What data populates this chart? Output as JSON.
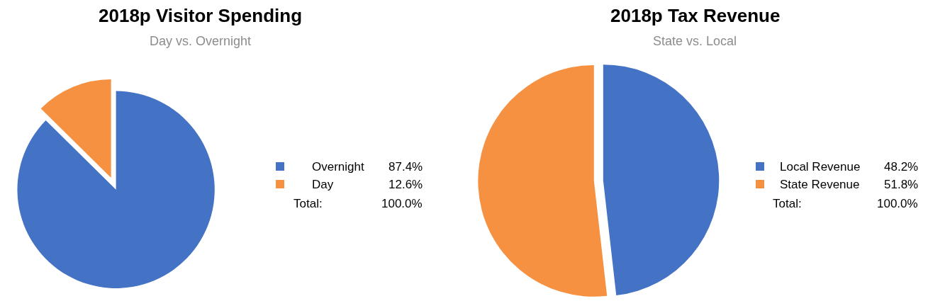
{
  "chart_data": [
    {
      "type": "pie",
      "title": "2018p Visitor Spending",
      "subtitle": "Day vs. Overnight",
      "categories": [
        "Overnight",
        "Day"
      ],
      "values": [
        87.4,
        12.6
      ],
      "colors": [
        "#4472c4",
        "#f79142"
      ],
      "value_labels": [
        "87.4%",
        "12.6%"
      ],
      "legend": "right",
      "annotations": [
        "Total:",
        "100.0%"
      ]
    },
    {
      "type": "pie",
      "title": "2018p Tax Revenue",
      "subtitle": "State vs. Local",
      "categories": [
        "Local Revenue",
        "State Revenue"
      ],
      "values": [
        48.2,
        51.8
      ],
      "colors": [
        "#4472c4",
        "#f79142"
      ],
      "value_labels": [
        "48.2%",
        "51.8%"
      ],
      "legend": "right",
      "annotations": [
        "Total:",
        "100.0%"
      ]
    }
  ]
}
